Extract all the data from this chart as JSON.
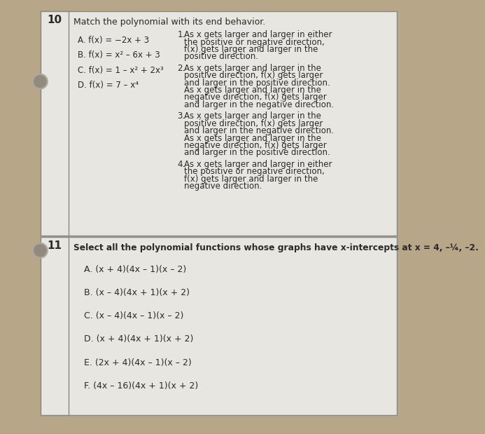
{
  "bg_color": "#b8a688",
  "paper_color": "#e8e6e0",
  "text_color": "#2a2a2a",
  "line_color": "#888888",
  "hole_color": "#888888",
  "q10_number": "10",
  "q10_title": "Match the polynomial with its end behavior.",
  "q10_left": [
    "A. f(x) = −2x + 3",
    "B. f(x) = x² – 6x + 3",
    "C. f(x) = 1 – x² + 2x³",
    "D. f(x) = 7 – x⁴"
  ],
  "q10_right": [
    {
      "num": "1.",
      "lines": [
        "As x gets larger and larger in either",
        "the positive or negative direction,",
        "f(x) gets larger and larger in the",
        "positive direction."
      ]
    },
    {
      "num": "2.",
      "lines": [
        "As x gets larger and larger in the",
        "positive direction, f(x) gets larger",
        "and larger in the positive direction.",
        "As x gets larger and larger in the",
        "negative direction, f(x) gets larger",
        "and larger in the negative direction."
      ]
    },
    {
      "num": "3.",
      "lines": [
        "As x gets larger and larger in the",
        "positive direction, f(x) gets larger",
        "and larger in the negative direction.",
        "As x gets larger and larger in the",
        "negative direction, f(x) gets larger",
        "and larger in the positive direction."
      ]
    },
    {
      "num": "4.",
      "lines": [
        "As x gets larger and larger in either",
        "the positive or negative direction,",
        "f(x) gets larger and larger in the",
        "negative direction."
      ]
    }
  ],
  "q11_number": "11",
  "q11_title": "Select all the polynomial functions whose graphs have x-intercepts at x = 4, –¼, –2.",
  "q11_options": [
    "A. (x + 4)(4x – 1)(x – 2)",
    "B. (x – 4)(4x + 1)(x + 2)",
    "C. (x – 4)(4x – 1)(x – 2)",
    "D. (x + 4)(4x + 1)(x + 2)",
    "E. (2x + 4)(4x – 1)(x – 2)",
    "F. (4x – 16)(4x + 1)(x + 2)"
  ]
}
